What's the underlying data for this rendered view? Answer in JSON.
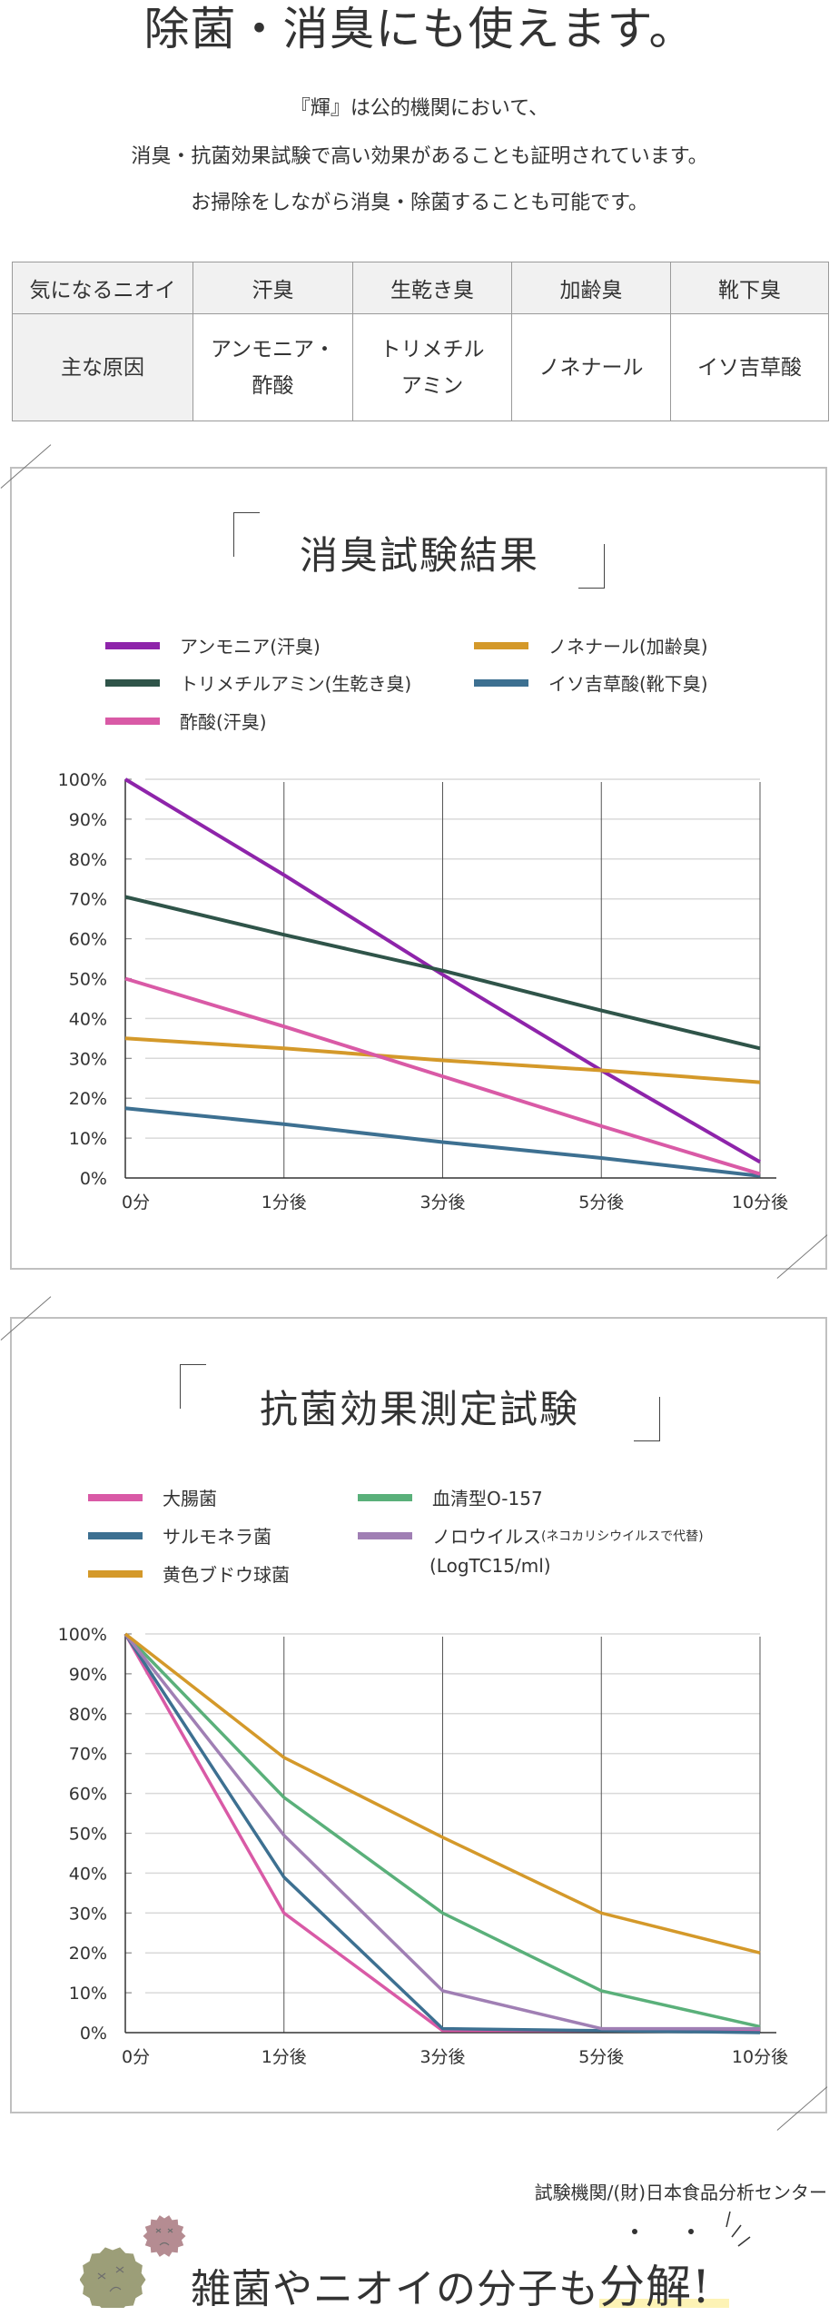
{
  "header": {
    "title": "除菌・消臭にも使えます。",
    "intro_lines": [
      "『輝』は公的機関において、",
      "消臭・抗菌効果試験で高い効果があることも証明されています。",
      "お掃除をしながら消臭・除菌することも可能です。"
    ]
  },
  "odor_table": {
    "header_row": [
      "気になるニオイ",
      "汗臭",
      "生乾き臭",
      "加齢臭",
      "靴下臭"
    ],
    "cause_row": {
      "label": "主な原因",
      "cells": [
        [
          "アンモニア・",
          "酢酸"
        ],
        [
          "トリメチル",
          "アミン"
        ],
        [
          "ノネナール"
        ],
        [
          "イソ吉草酸"
        ]
      ]
    }
  },
  "colors": {
    "border": "#c0c0c0",
    "grid": "#d9d9d9",
    "axis": "#333333",
    "highlight": "#fdf3b5"
  },
  "chart_data": [
    {
      "type": "line",
      "title": "消臭試験結果",
      "xlabel": "",
      "ylabel": "",
      "categories": [
        "0分",
        "1分後",
        "3分後",
        "5分後",
        "10分後"
      ],
      "yticks": [
        "0%",
        "10%",
        "20%",
        "30%",
        "40%",
        "50%",
        "60%",
        "70%",
        "80%",
        "90%",
        "100%"
      ],
      "ylim": [
        0,
        100
      ],
      "grid": true,
      "legend_position": "top",
      "series": [
        {
          "name": "アンモニア(汗臭)",
          "color": "#8e24aa",
          "values": [
            100,
            76,
            51,
            27,
            4
          ]
        },
        {
          "name": "ノネナール(加齢臭)",
          "color": "#d4992a",
          "values": [
            35,
            32.5,
            29.5,
            27,
            24
          ]
        },
        {
          "name": "トリメチルアミン(生乾き臭)",
          "color": "#2f5449",
          "values": [
            70.5,
            61,
            52,
            42,
            32.5
          ]
        },
        {
          "name": "イソ吉草酸(靴下臭)",
          "color": "#3d7091",
          "values": [
            17.5,
            13.5,
            9,
            5,
            0.5
          ]
        },
        {
          "name": "酢酸(汗臭)",
          "color": "#d95aa6",
          "values": [
            50,
            38,
            25.5,
            13,
            1
          ]
        }
      ]
    },
    {
      "type": "line",
      "title": "抗菌効果測定試験",
      "xlabel": "",
      "ylabel": "",
      "categories": [
        "0分",
        "1分後",
        "3分後",
        "5分後",
        "10分後"
      ],
      "yticks": [
        "0%",
        "10%",
        "20%",
        "30%",
        "40%",
        "50%",
        "60%",
        "70%",
        "80%",
        "90%",
        "100%"
      ],
      "ylim": [
        0,
        100
      ],
      "grid": true,
      "legend_position": "top",
      "unit_note": "(LogTC15/ml)",
      "series": [
        {
          "name": "大腸菌",
          "color": "#d95aa6",
          "values": [
            100,
            30,
            0.5,
            0.5,
            0.5
          ]
        },
        {
          "name": "血清型O-157",
          "color": "#5ab07a",
          "values": [
            100,
            59,
            30,
            10.5,
            1.5
          ]
        },
        {
          "name": "サルモネラ菌",
          "color": "#3d7091",
          "values": [
            100,
            39,
            1,
            0.5,
            0
          ]
        },
        {
          "name": "ノロウイルス",
          "name_note": "(ネコカリシウイルスで代替)",
          "color": "#a07fb4",
          "values": [
            100,
            49.5,
            10.5,
            1,
            1
          ]
        },
        {
          "name": "黄色ブドウ球菌",
          "color": "#d4992a",
          "values": [
            100,
            69,
            49,
            30,
            20
          ]
        }
      ]
    }
  ],
  "footer": {
    "source": "試験機関/(財)日本食品分析センター",
    "tagline_main": "雑菌やニオイの分子も",
    "tagline_emph": "分解!",
    "germ_colors": [
      "#9c9e78",
      "#b58c92"
    ]
  }
}
